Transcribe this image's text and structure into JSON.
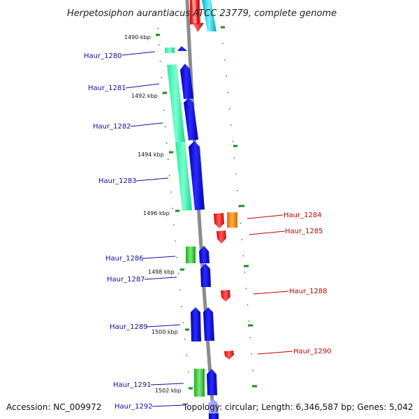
{
  "title": "Herpetosiphon aurantiacus ATCC 23779, complete genome",
  "footer": {
    "accession": "Accession: NC_009972",
    "topology": "Topology: circular; Length: 6,346,587 bp; Genes: 5,042"
  },
  "colors": {
    "backbone": "#8c8c8c",
    "tick": "#1e8a1e",
    "left_label": "#1010a0",
    "right_label": "#c00000"
  },
  "kbp_labels": [
    "1490 kbp",
    "1492 kbp",
    "1494 kbp",
    "1496 kbp",
    "1498 kbp",
    "1500 kbp",
    "1502 kbp"
  ],
  "genes_left": [
    {
      "name": "Haur_1280"
    },
    {
      "name": "Haur_1281"
    },
    {
      "name": "Haur_1282"
    },
    {
      "name": "Haur_1283"
    },
    {
      "name": "Haur_1286"
    },
    {
      "name": "Haur_1287"
    },
    {
      "name": "Haur_1289"
    },
    {
      "name": "Haur_1291"
    },
    {
      "name": "Haur_1292"
    }
  ],
  "genes_right": [
    {
      "name": "Haur_1284"
    },
    {
      "name": "Haur_1285"
    },
    {
      "name": "Haur_1288"
    },
    {
      "name": "Haur_1290"
    }
  ]
}
